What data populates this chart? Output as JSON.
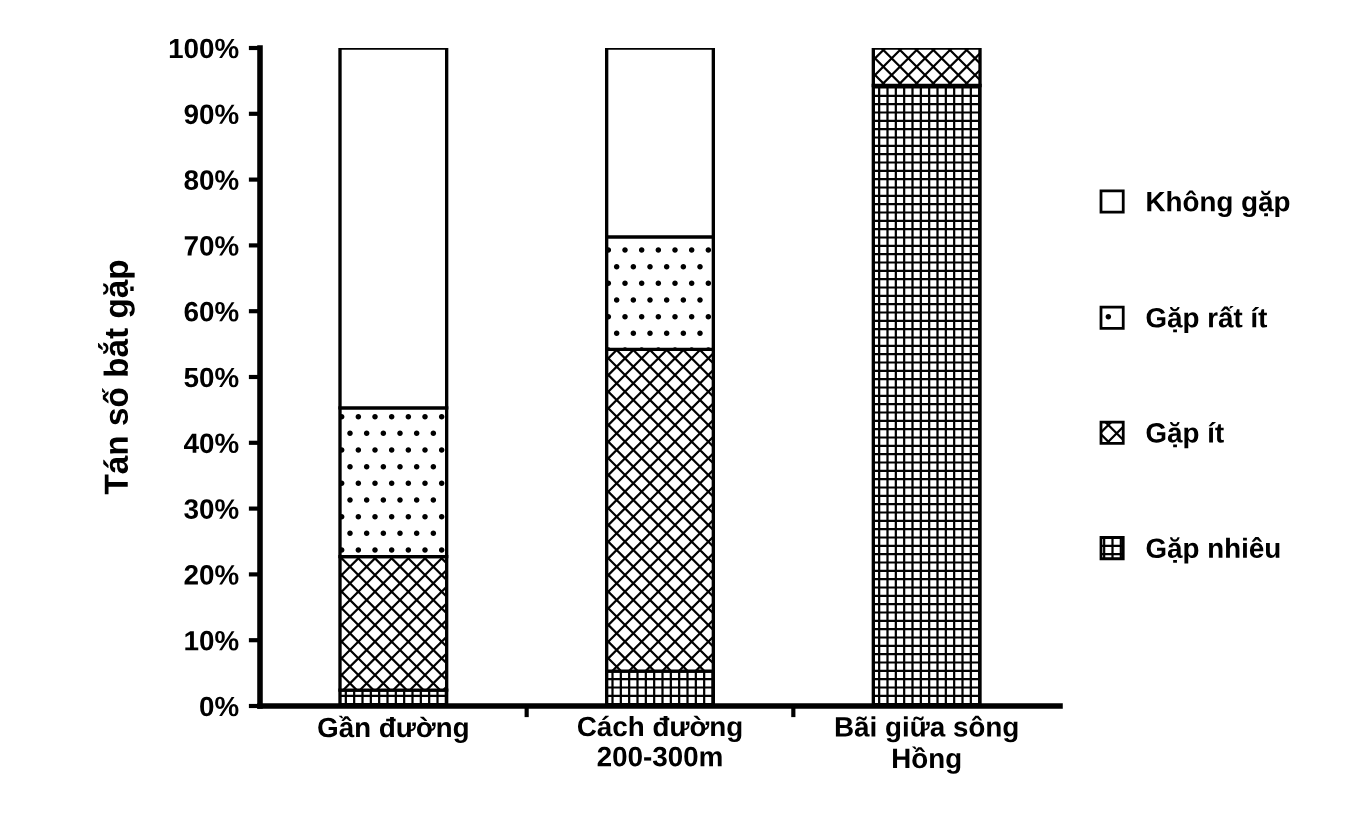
{
  "chart_data": {
    "type": "bar",
    "stacked": true,
    "ylabel": "Tán số bắt gặp",
    "categories": [
      "Gần đường",
      "Cách đường\n200-300m",
      "Bãi giữa sông\nHồng"
    ],
    "series": [
      {
        "name": "Gặp nhiêu",
        "color": "#000000",
        "values": [
          2.4,
          5.3,
          94.3
        ]
      },
      {
        "name": "Gặp ít",
        "color": "#000000",
        "values": [
          20.3,
          48.9,
          5.7
        ]
      },
      {
        "name": "Gặp rất ít",
        "color": "#000000",
        "values": [
          22.6,
          17.1,
          0
        ]
      },
      {
        "name": "Không gặp",
        "color": "#ffffff",
        "values": [
          54.7,
          28.7,
          0
        ]
      }
    ],
    "ylim": [
      0,
      100
    ],
    "yticks": [
      {
        "value": 0,
        "label": "0%"
      },
      {
        "value": 10,
        "label": "10%"
      },
      {
        "value": 20,
        "label": "20%"
      },
      {
        "value": 30,
        "label": "30%"
      },
      {
        "value": 40,
        "label": "40%"
      },
      {
        "value": 50,
        "label": "50%"
      },
      {
        "value": 60,
        "label": "60%"
      },
      {
        "value": 70,
        "label": "70%"
      },
      {
        "value": 80,
        "label": "80%"
      },
      {
        "value": 90,
        "label": "90%"
      },
      {
        "value": 100,
        "label": "100%"
      }
    ],
    "legend": "right",
    "grid": false
  }
}
